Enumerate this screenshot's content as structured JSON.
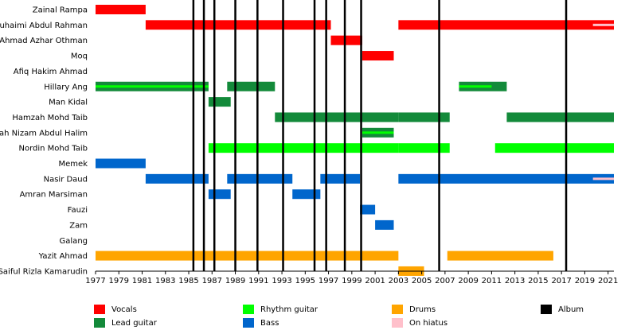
{
  "chart_data": {
    "type": "timeline",
    "xlim": [
      1977,
      2021.5
    ],
    "x_ticks": [
      "1977",
      "1979",
      "1981",
      "1983",
      "1985",
      "1987",
      "1989",
      "1991",
      "1993",
      "1995",
      "1997",
      "1999",
      "2001",
      "2003",
      "2005",
      "2007",
      "2009",
      "2011",
      "2013",
      "2015",
      "2017",
      "2019",
      "2021"
    ],
    "members": [
      "Zainal Rampa",
      "Suhaimi Abdul Rahman",
      "Ahmad Azhar Othman",
      "Moq",
      "Afiq Hakim Ahmad",
      "Hillary Ang",
      "Man Kidal",
      "Hamzah Mohd Taib",
      "Shah Nizam Abdul Halim",
      "Nordin Mohd Taib",
      "Memek",
      "Nasir Daud",
      "Amran Marsiman",
      "Fauzi",
      "Zam",
      "Galang",
      "Yazit Ahmad",
      "Saiful Rizla Kamarudin"
    ],
    "roles": {
      "vocals": "#ff0000",
      "lead_guitar": "#138a3a",
      "rhythm_guitar": "#00ff00",
      "drums": "#ffa500",
      "bass": "#0066cc",
      "hiatus": "#ffc0cb",
      "album": "#000000"
    },
    "bars": [
      {
        "member": 0,
        "role": "vocals",
        "start": 1977,
        "end": 1981.3
      },
      {
        "member": 1,
        "role": "vocals",
        "start": 1981.3,
        "end": 1997.2
      },
      {
        "member": 1,
        "role": "vocals",
        "start": 2003,
        "end": 2021.5
      },
      {
        "member": 2,
        "role": "vocals",
        "start": 1997.2,
        "end": 1999.9
      },
      {
        "member": 3,
        "role": "vocals",
        "start": 1999.9,
        "end": 2002.6
      },
      {
        "member": 5,
        "role": "lead_guitar",
        "start": 1977,
        "end": 1986.7
      },
      {
        "member": 5,
        "role": "lead_guitar",
        "start": 1988.3,
        "end": 1992.4
      },
      {
        "member": 5,
        "role": "lead_guitar",
        "start": 2008.2,
        "end": 2012.3
      },
      {
        "member": 6,
        "role": "lead_guitar",
        "start": 1986.7,
        "end": 1988.6
      },
      {
        "member": 7,
        "role": "lead_guitar",
        "start": 1992.4,
        "end": 2003.0
      },
      {
        "member": 7,
        "role": "lead_guitar",
        "start": 2003,
        "end": 2007.4
      },
      {
        "member": 7,
        "role": "lead_guitar",
        "start": 2012.3,
        "end": 2021.5
      },
      {
        "member": 8,
        "role": "lead_guitar",
        "start": 1999.9,
        "end": 2002.6
      },
      {
        "member": 9,
        "role": "rhythm_guitar",
        "start": 1986.7,
        "end": 2003.0
      },
      {
        "member": 9,
        "role": "rhythm_guitar",
        "start": 2003,
        "end": 2007.4
      },
      {
        "member": 9,
        "role": "rhythm_guitar",
        "start": 2011.3,
        "end": 2021.5
      },
      {
        "member": 10,
        "role": "bass",
        "start": 1977,
        "end": 1981.3
      },
      {
        "member": 11,
        "role": "bass",
        "start": 1981.3,
        "end": 1986.7
      },
      {
        "member": 11,
        "role": "bass",
        "start": 1988.3,
        "end": 1993.9
      },
      {
        "member": 11,
        "role": "bass",
        "start": 1996.3,
        "end": 1999.7
      },
      {
        "member": 11,
        "role": "bass",
        "start": 2003,
        "end": 2021.5
      },
      {
        "member": 12,
        "role": "bass",
        "start": 1986.7,
        "end": 1988.6
      },
      {
        "member": 12,
        "role": "bass",
        "start": 1993.9,
        "end": 1996.3
      },
      {
        "member": 13,
        "role": "bass",
        "start": 1999.7,
        "end": 2001.0
      },
      {
        "member": 14,
        "role": "bass",
        "start": 2001.0,
        "end": 2002.6
      },
      {
        "member": 16,
        "role": "drums",
        "start": 1977,
        "end": 2003.0
      },
      {
        "member": 16,
        "role": "drums",
        "start": 2007.2,
        "end": 2016.3
      },
      {
        "member": 17,
        "role": "drums",
        "start": 2003,
        "end": 2005.2
      }
    ],
    "overlays": [
      {
        "member": 5,
        "role": "rhythm_guitar",
        "start": 1977,
        "end": 1986.7
      },
      {
        "member": 5,
        "role": "rhythm_guitar",
        "start": 2008.2,
        "end": 2011.0
      },
      {
        "member": 8,
        "role": "rhythm_guitar",
        "start": 1999.9,
        "end": 2002.6
      },
      {
        "member": 1,
        "role": "hiatus",
        "start": 2019.7,
        "end": 2021.5
      },
      {
        "member": 11,
        "role": "hiatus",
        "start": 2019.7,
        "end": 2021.5
      }
    ],
    "albums": [
      1985.4,
      1986.3,
      1987.2,
      1989.0,
      1990.9,
      1993.1,
      1995.8,
      1996.8,
      1998.4,
      1999.8,
      2006.5,
      2017.4
    ]
  },
  "legend": [
    {
      "label": "Vocals",
      "color": "#ff0000"
    },
    {
      "label": "Lead guitar",
      "color": "#138a3a"
    },
    {
      "label": "Rhythm guitar",
      "color": "#00ff00"
    },
    {
      "label": "Bass",
      "color": "#0066cc"
    },
    {
      "label": "Drums",
      "color": "#ffa500"
    },
    {
      "label": "On hiatus",
      "color": "#ffc0cb"
    },
    {
      "label": "Album",
      "color": "#000000"
    }
  ]
}
